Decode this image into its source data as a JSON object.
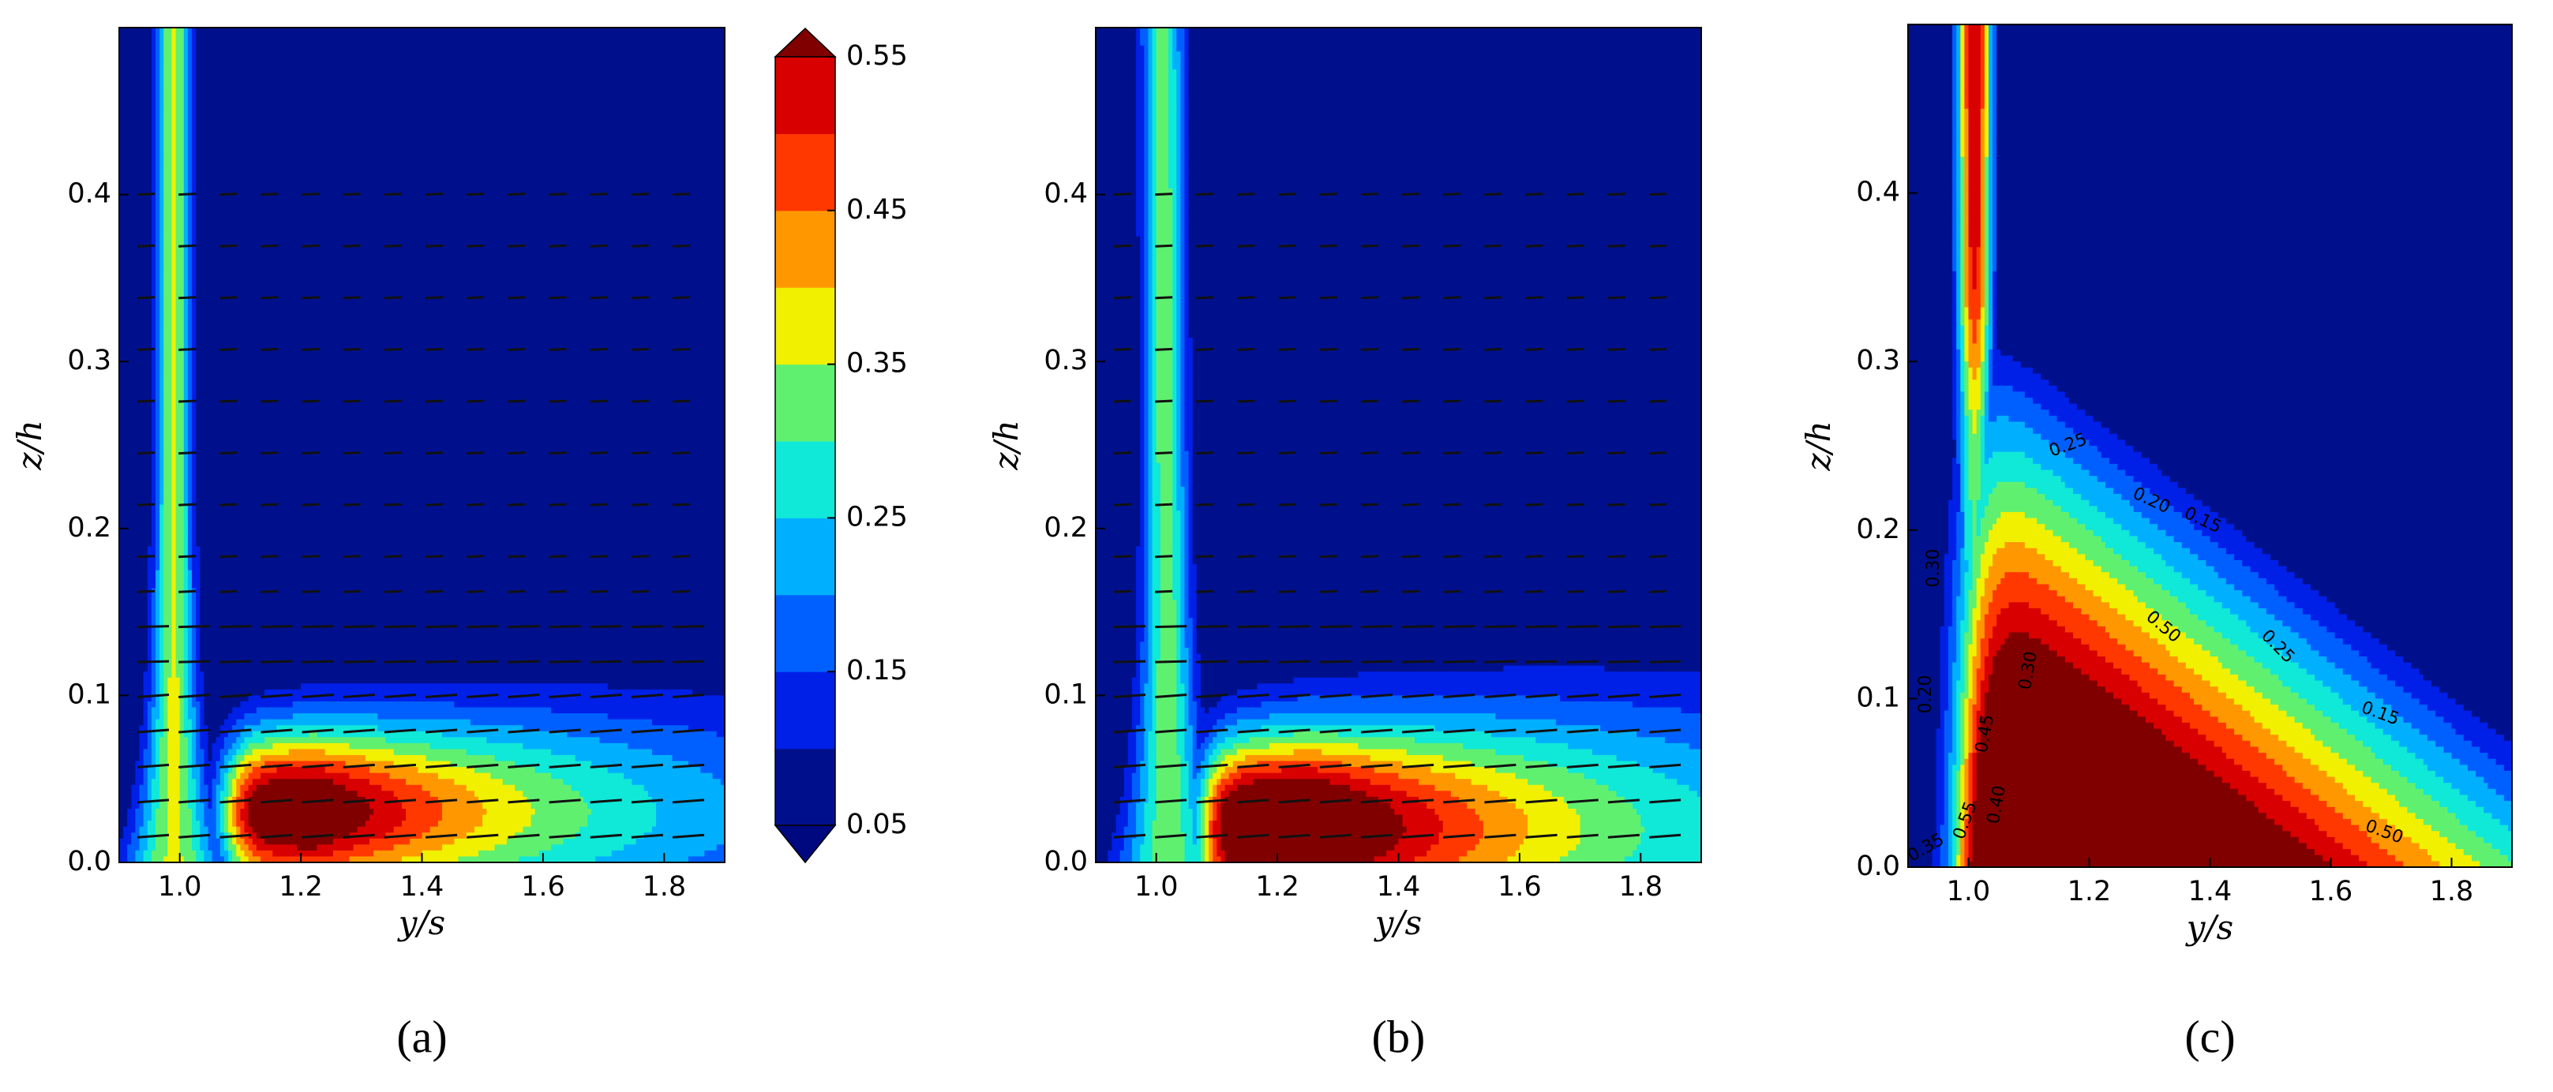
{
  "chart_data": [
    {
      "type": "contour",
      "label": "(a)",
      "xlabel": "y/s",
      "ylabel": "z/h",
      "xlim": [
        0.9,
        1.9
      ],
      "ylim": [
        0,
        0.5
      ],
      "xticks": [
        {
          "value": 1,
          "label": "1.0"
        },
        1.2,
        1.4,
        1.6,
        1.8
      ],
      "yticks": [
        {
          "value": 0,
          "label": "0.0"
        },
        0.1,
        0.2,
        0.3,
        0.4
      ],
      "vectors": true,
      "colorbar": {
        "levels": [
          0.05,
          0.1,
          0.15,
          0.2,
          0.25,
          0.3,
          0.35,
          0.4,
          0.45,
          0.5,
          0.55
        ],
        "ticks": [
          0.05,
          0.15,
          0.25,
          0.35,
          0.45,
          0.55
        ],
        "colors": [
          "#00108c",
          "#0020e8",
          "#0060ff",
          "#00b0ff",
          "#10e8d8",
          "#60f070",
          "#f0f000",
          "#ff9800",
          "#ff3800",
          "#d80000"
        ],
        "over_color": "#800000",
        "under_color": "#000880"
      }
    },
    {
      "type": "contour",
      "label": "(b)",
      "xlabel": "y/s",
      "ylabel": "z/h",
      "xlim": [
        0.9,
        1.9
      ],
      "ylim": [
        0,
        0.5
      ],
      "xticks": [
        {
          "value": 1,
          "label": "1.0"
        },
        1.2,
        1.4,
        1.6,
        1.8
      ],
      "yticks": [
        {
          "value": 0,
          "label": "0.0"
        },
        0.1,
        0.2,
        0.3,
        0.4
      ],
      "vectors": true
    },
    {
      "type": "contour",
      "label": "(c)",
      "xlabel": "y/s",
      "ylabel": "z/h",
      "xlim": [
        0.9,
        1.9
      ],
      "ylim": [
        0,
        0.5
      ],
      "xticks": [
        {
          "value": 1,
          "label": "1.0"
        },
        1.2,
        1.4,
        1.6,
        1.8
      ],
      "yticks": [
        {
          "value": 0,
          "label": "0.0"
        },
        0.1,
        0.2,
        0.3,
        0.4
      ],
      "vectors": false,
      "contour_labels": [
        "0.25",
        "0.20",
        "0.15",
        "0.50",
        "0.25",
        "0.15",
        "0.50",
        "0.45",
        "0.30",
        "0.55",
        "0.35",
        "0.40",
        "0.30",
        "0.20"
      ]
    }
  ]
}
